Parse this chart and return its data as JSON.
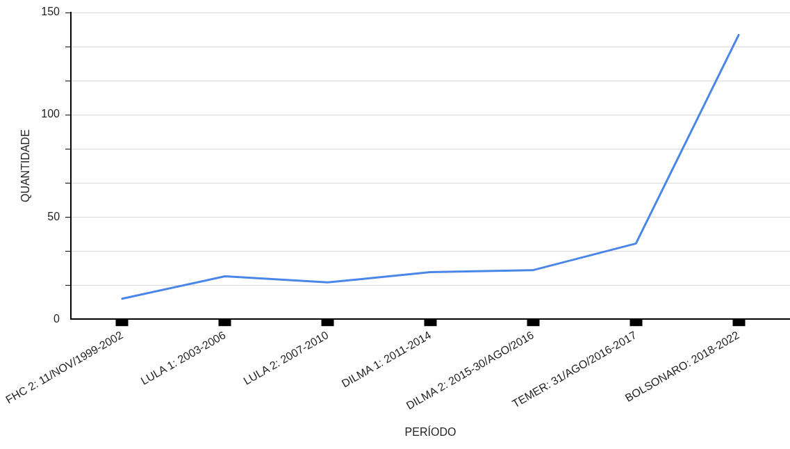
{
  "chart_data": {
    "type": "line",
    "xlabel": "PERÍODO",
    "ylabel": "QUANTIDADE",
    "categories": [
      "FHC 2: 11/NOV/1999-2002",
      "LULA 1: 2003-2006",
      "LULA 2: 2007-2010",
      "DILMA 1: 2011-2014",
      "DILMA 2: 2015-30/AGO/2016",
      "TEMER: 31/AGO/2016-2017",
      "BOLSONARO: 2018-2022"
    ],
    "series": [
      {
        "color": "#4a86e8",
        "values": [
          10,
          21,
          18,
          23,
          24,
          37,
          139
        ]
      }
    ],
    "ylim": [
      0,
      150
    ],
    "yticks": [
      0,
      {
        "value": 16.667,
        "label": null
      },
      {
        "value": 33.333,
        "label": null
      },
      50,
      {
        "value": 66.667,
        "label": null
      },
      {
        "value": 83.333,
        "label": null
      },
      100,
      {
        "value": 116.667,
        "label": null
      },
      {
        "value": 133.333,
        "label": null
      },
      150
    ],
    "grid": "y",
    "legend": false,
    "marker": "none",
    "line_style": "solid"
  }
}
